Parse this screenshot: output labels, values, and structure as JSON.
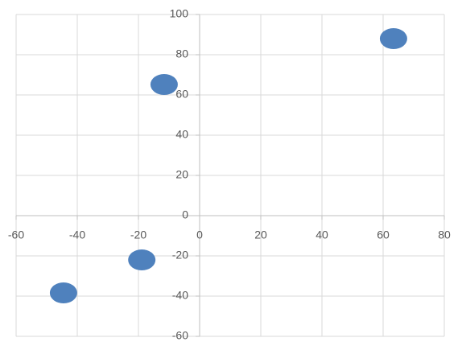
{
  "chart_data": {
    "type": "scatter",
    "x": [
      63.4,
      -11.6,
      -18.9,
      -44.5
    ],
    "values": [
      88,
      65.2,
      -22,
      -38.4
    ],
    "color": "#4f81bd",
    "xlim": [
      -60,
      80
    ],
    "xticks": [
      -60,
      -40,
      -20,
      0,
      20,
      40,
      60,
      80
    ],
    "ylim": [
      -60,
      100
    ],
    "yticks": [
      -60,
      -40,
      -20,
      0,
      20,
      40,
      60,
      80,
      100
    ],
    "grid": true
  }
}
